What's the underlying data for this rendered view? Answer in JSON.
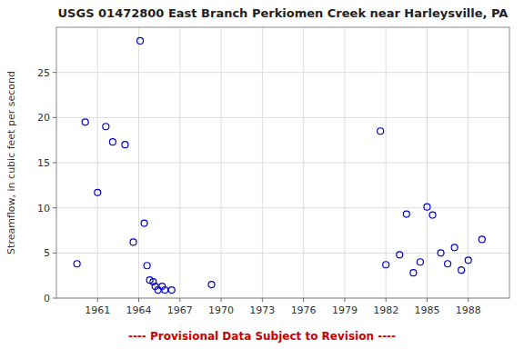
{
  "chart_data": {
    "type": "scatter",
    "title": "USGS 01472800 East Branch Perkiomen Creek near Harleysville, PA",
    "ylabel": "Streamflow, in cubic feet per second",
    "x": [
      1959.5,
      1960.1,
      1961.0,
      1961.6,
      1962.1,
      1963.0,
      1963.6,
      1964.1,
      1964.4,
      1964.6,
      1964.8,
      1965.05,
      1965.2,
      1965.4,
      1965.7,
      1965.9,
      1966.4,
      1969.3,
      1981.6,
      1982.0,
      1983.0,
      1983.5,
      1984.0,
      1984.5,
      1985.0,
      1985.4,
      1986.0,
      1986.5,
      1987.0,
      1987.5,
      1988.0,
      1989.0
    ],
    "values": [
      3.8,
      19.5,
      11.7,
      19.0,
      17.3,
      17.0,
      6.2,
      28.5,
      8.3,
      3.6,
      2.0,
      1.8,
      1.3,
      0.9,
      1.3,
      0.9,
      0.9,
      1.5,
      18.5,
      3.7,
      4.8,
      9.3,
      2.8,
      4.0,
      10.1,
      9.2,
      5.0,
      3.8,
      5.6,
      3.1,
      4.2,
      6.5
    ],
    "color": "#0000CC",
    "marker": "circle",
    "xlim": [
      1958,
      1991
    ],
    "ylim": [
      0,
      30
    ],
    "xticks": [
      1961,
      1964,
      1967,
      1970,
      1973,
      1976,
      1979,
      1982,
      1985,
      1988
    ],
    "yticks": [
      0,
      5,
      10,
      15,
      20,
      25
    ],
    "grid": true,
    "annotations": [
      {
        "text": "---- Provisional Data Subject to Revision ----",
        "color": "#cc0000"
      }
    ]
  }
}
